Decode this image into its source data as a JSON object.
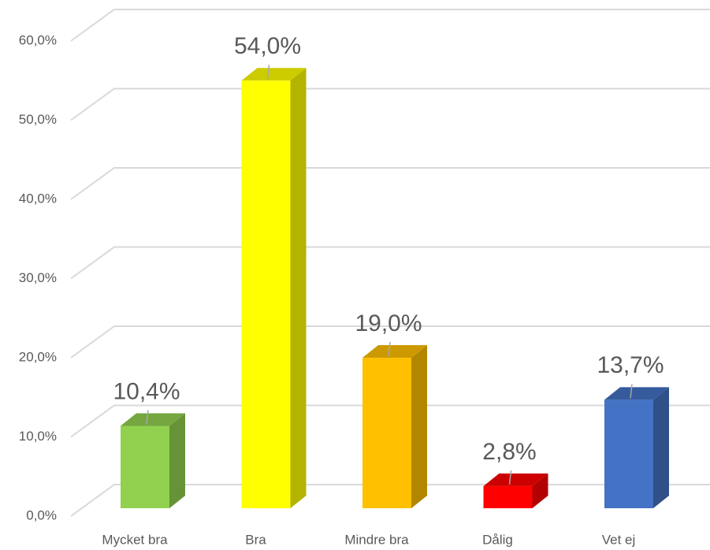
{
  "chart_data": {
    "type": "bar3d",
    "categories": [
      "Mycket bra",
      "Bra",
      "Mindre bra",
      "Dålig",
      "Vet ej"
    ],
    "values": [
      10.4,
      54.0,
      19.0,
      2.8,
      13.7
    ],
    "value_labels": [
      "10,4%",
      "54,0%",
      "19,0%",
      "2,8%",
      "13,7%"
    ],
    "colors": [
      "#92d050",
      "#ffff00",
      "#ffc000",
      "#ff0000",
      "#4472c4"
    ],
    "ylim": [
      0,
      60
    ],
    "yticks": [
      {
        "value": 0,
        "label": "0,0%"
      },
      {
        "value": 10,
        "label": "10,0%"
      },
      {
        "value": 20,
        "label": "20,0%"
      },
      {
        "value": 30,
        "label": "30,0%"
      },
      {
        "value": 40,
        "label": "40,0%"
      },
      {
        "value": 50,
        "label": "50,0%"
      },
      {
        "value": 60,
        "label": "60,0%"
      }
    ],
    "grid": true
  }
}
